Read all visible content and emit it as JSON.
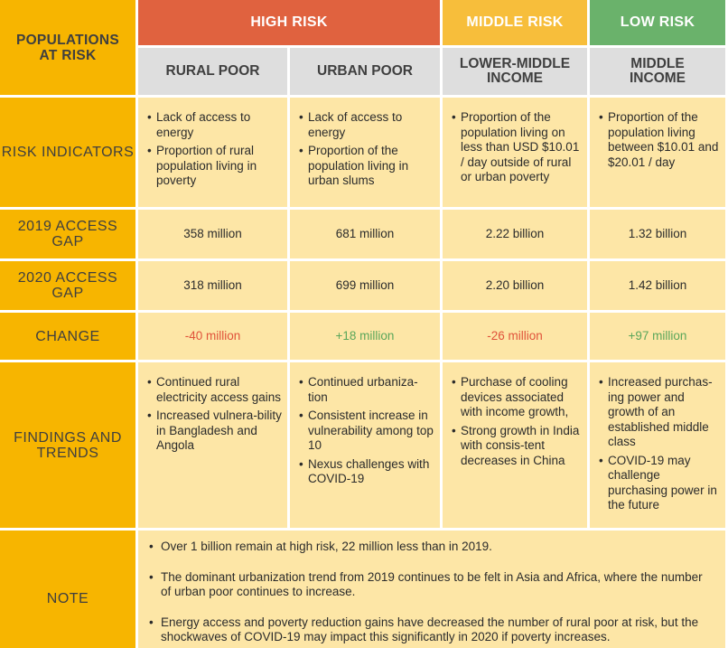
{
  "colors": {
    "high_risk": "#e0623f",
    "middle_risk": "#f7be3b",
    "low_risk": "#6ab26b",
    "label_column": "#f7b500",
    "subheader": "#dedede",
    "body": "#fde6a6",
    "decrease": "#e0523a",
    "increase": "#5aa65a"
  },
  "corner_label": "POPULATIONS AT RISK",
  "headers": {
    "high_risk": "HIGH RISK",
    "middle_risk": "MIDDLE RISK",
    "low_risk": "LOW RISK"
  },
  "columns": [
    "RURAL POOR",
    "URBAN POOR",
    "LOWER-MIDDLE INCOME",
    "MIDDLE INCOME"
  ],
  "rows": {
    "risk_indicators": {
      "label": "RISK INDICATORS",
      "cells": [
        [
          "Lack of access to energy",
          "Proportion of rural population living in poverty"
        ],
        [
          "Lack of access to energy",
          "Proportion of the population living in urban slums"
        ],
        [
          "Proportion of the population living on less than USD $10.01 / day outside of rural or urban poverty"
        ],
        [
          "Proportion of the population living between $10.01 and $20.01 / day"
        ]
      ]
    },
    "gap_2019": {
      "label": "2019 ACCESS GAP",
      "values": [
        "358 million",
        "681 million",
        "2.22 billion",
        "1.32 billion"
      ]
    },
    "gap_2020": {
      "label": "2020 ACCESS GAP",
      "values": [
        "318 million",
        "699 million",
        "2.20 billion",
        "1.42 billion"
      ]
    },
    "change": {
      "label": "CHANGE",
      "values": [
        "-40 million",
        "+18 million",
        "-26 million",
        "+97 million"
      ]
    },
    "findings": {
      "label": "FINDINGS AND TRENDS",
      "cells": [
        [
          "Continued rural electricity access gains",
          "Increased vulnera-bility in Bangladesh and Angola"
        ],
        [
          "Continued urbaniza-tion",
          "Consistent increase in vulnerability among top 10",
          "Nexus challenges with COVID-19"
        ],
        [
          "Purchase of cooling devices associated with income growth,",
          "Strong growth in India with consis-tent decreases in China"
        ],
        [
          "Increased purchas-ing power and growth of an established middle class",
          "COVID-19 may challenge purchasing power in the future"
        ]
      ]
    },
    "note": {
      "label": "NOTE",
      "items": [
        "Over 1 billion remain at high risk, 22 million less than in 2019.",
        "The dominant urbanization trend from 2019 continues to be felt in Asia and Africa, where the number of urban poor continues to increase.",
        "Energy access and poverty reduction gains have decreased the number of rural poor at risk, but the shockwaves of COVID-19 may impact this significantly in 2020 if poverty increases."
      ]
    }
  }
}
